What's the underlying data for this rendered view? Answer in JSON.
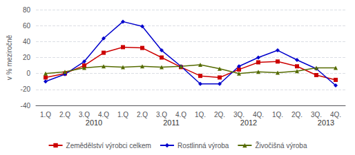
{
  "chart_data": {
    "type": "line",
    "ylabel": "v % meziročně",
    "categories": [
      "1.Q",
      "2.Q",
      "3.Q",
      "4.Q",
      "1.Q",
      "2.Q",
      "3.Q",
      "4.Q",
      "1Q.",
      "2Q.",
      "3Q.",
      "4Q.",
      "1Q.",
      "2Q.",
      "3Q.",
      "4Q."
    ],
    "series": [
      {
        "name": "Zemědělství výrobci celkem",
        "color": "#cc0000",
        "marker": "square",
        "values": [
          -5,
          0,
          10,
          26,
          33,
          32,
          20,
          8,
          -3,
          -5,
          5,
          14,
          15,
          9,
          -2,
          -8
        ]
      },
      {
        "name": "Rostlinná výroba",
        "color": "#0000cc",
        "marker": "diamond",
        "values": [
          -10,
          -1,
          15,
          44,
          65,
          59,
          29,
          9,
          -13,
          -13,
          9,
          20,
          29,
          17,
          6,
          -15
        ]
      },
      {
        "name": "Živočišná výroba",
        "color": "#556b00",
        "marker": "triangle",
        "values": [
          0,
          2,
          7,
          9,
          8,
          9,
          8,
          9,
          11,
          6,
          0,
          2,
          1,
          3,
          7,
          7
        ]
      }
    ],
    "annotations": [
      {
        "text": "2010",
        "x": 2.5
      },
      {
        "text": "2011",
        "x": 6.5
      },
      {
        "text": "2012",
        "x": 10.5
      },
      {
        "text": "2013",
        "x": 14.5
      }
    ],
    "ylim": [
      -40,
      80
    ],
    "yticks": [
      -40,
      -20,
      0,
      20,
      40,
      60,
      80
    ],
    "grid": true,
    "legend": "bottom"
  }
}
